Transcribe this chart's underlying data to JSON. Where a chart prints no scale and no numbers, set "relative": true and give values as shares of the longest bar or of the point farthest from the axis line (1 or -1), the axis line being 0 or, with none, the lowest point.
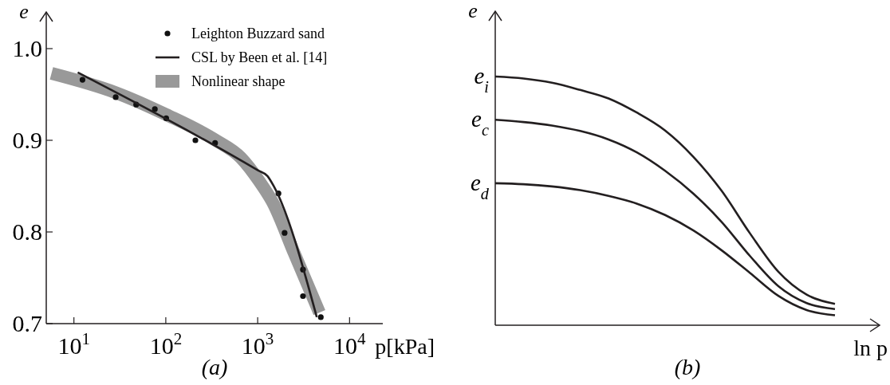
{
  "chart_data": [
    {
      "type": "line",
      "title": "(a)",
      "xlabel": "p[kPa]",
      "ylabel": "e",
      "log": "x",
      "xlim": [
        5,
        23000
      ],
      "ylim": [
        0.7,
        1.04
      ],
      "xticks": [
        {
          "value": 10,
          "label": "10$^{1}$"
        },
        {
          "value": 100,
          "label": "10$^{2}$"
        },
        {
          "value": 1000,
          "label": "10$^{3}$"
        },
        {
          "value": 10000,
          "label": "10$^{4}$"
        }
      ],
      "yticks": [
        0.7,
        0.8,
        0.9,
        {
          "value": 1,
          "label": "1.0"
        }
      ],
      "legend": "top right",
      "series": [
        {
          "name": "Leighton Buzzard sand",
          "type": "scatter",
          "marker": "circle",
          "color": "#111111",
          "x": [
            12.4,
            28.5,
            47.6,
            76,
            101,
            210,
            344,
            1683,
            1963,
            3112,
            3112,
            4864
          ],
          "values": [
            0.966,
            0.947,
            0.939,
            0.934,
            0.924,
            0.9,
            0.897,
            0.842,
            0.799,
            0.759,
            0.73,
            0.707
          ]
        },
        {
          "name": "CSL by Been et al. [14]",
          "type": "line",
          "color": "#231f20",
          "x": [
            11,
            1014,
            1279,
            1514,
            4400
          ],
          "values": [
            0.974,
            0.867,
            0.861,
            0.849,
            0.707
          ]
        },
        {
          "name": "Nonlinear shape",
          "type": "line",
          "color": "#999999",
          "x": [
            5.7,
            28.5,
            101,
            337,
            656,
            1047,
            1462,
            2494,
            4700
          ],
          "values": [
            0.973,
            0.952,
            0.928,
            0.901,
            0.881,
            0.855,
            0.832,
            0.777,
            0.712
          ]
        }
      ]
    },
    {
      "type": "line",
      "title": "(b)",
      "xlabel": "ln p",
      "ylabel": "e",
      "relative": true,
      "categories": [
        null,
        null,
        null,
        null,
        null,
        null,
        null,
        null,
        null,
        null,
        null,
        null,
        null
      ],
      "series": [
        {
          "name": "e$_{i}$",
          "color": "#231f20",
          "values": [
            1,
            0.992,
            0.975,
            0.946,
            0.912,
            0.855,
            0.783,
            0.677,
            0.54,
            0.369,
            0.215,
            0.123,
            0.086
          ]
        },
        {
          "name": "e$_{c}$",
          "color": "#231f20",
          "values": [
            0.826,
            0.817,
            0.803,
            0.781,
            0.747,
            0.695,
            0.621,
            0.529,
            0.415,
            0.278,
            0.157,
            0.089,
            0.065
          ]
        },
        {
          "name": "e$_{d}$",
          "color": "#231f20",
          "values": [
            0.571,
            0.567,
            0.558,
            0.543,
            0.52,
            0.489,
            0.443,
            0.381,
            0.301,
            0.21,
            0.118,
            0.061,
            0.04
          ]
        }
      ]
    }
  ]
}
